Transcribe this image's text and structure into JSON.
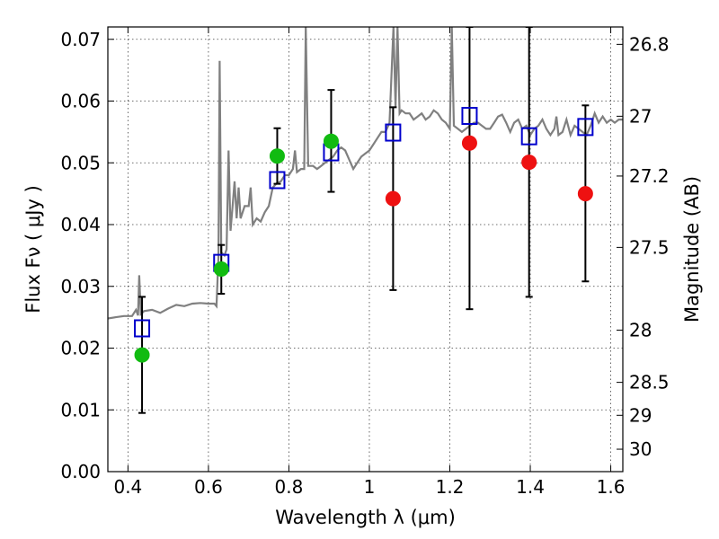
{
  "chart_data": {
    "type": "scatter",
    "xlabel": "Wavelength  λ (μm)",
    "ylabel": "Flux  Fν  ( μJy )",
    "ylabel_right": "Magnitude (AB)",
    "xlim": [
      0.35,
      1.63
    ],
    "ylim": [
      0.0,
      0.072
    ],
    "grid": true,
    "x_ticks": [
      {
        "v": 0.4,
        "label": "0.4"
      },
      {
        "v": 0.6,
        "label": "0.6"
      },
      {
        "v": 0.8,
        "label": "0.8"
      },
      {
        "v": 1.0,
        "label": "1"
      },
      {
        "v": 1.2,
        "label": "1.2"
      },
      {
        "v": 1.4,
        "label": "1.4"
      },
      {
        "v": 1.6,
        "label": "1.6"
      }
    ],
    "y_ticks": [
      {
        "v": 0.0,
        "label": "0.00"
      },
      {
        "v": 0.01,
        "label": "0.01"
      },
      {
        "v": 0.02,
        "label": "0.02"
      },
      {
        "v": 0.03,
        "label": "0.03"
      },
      {
        "v": 0.04,
        "label": "0.04"
      },
      {
        "v": 0.05,
        "label": "0.05"
      },
      {
        "v": 0.06,
        "label": "0.06"
      },
      {
        "v": 0.07,
        "label": "0.07"
      }
    ],
    "right_ticks": [
      {
        "label": "26.8",
        "mag": 26.8
      },
      {
        "label": "27",
        "mag": 27.0
      },
      {
        "label": "27.2",
        "mag": 27.2
      },
      {
        "label": "27.5",
        "mag": 27.5
      },
      {
        "label": "28",
        "mag": 28.0
      },
      {
        "label": "28.5",
        "mag": 28.5
      },
      {
        "label": "29",
        "mag": 29.0
      },
      {
        "label": "30",
        "mag": 30.0
      }
    ],
    "colors": {
      "spectrum": "#808080",
      "model": "#0000cc",
      "detected": "#11bb11",
      "undetected": "#ee1111",
      "errorbar": "#000000"
    },
    "spectrum": [
      [
        0.35,
        0.0248
      ],
      [
        0.37,
        0.025
      ],
      [
        0.39,
        0.0252
      ],
      [
        0.41,
        0.0252
      ],
      [
        0.42,
        0.0262
      ],
      [
        0.425,
        0.0253
      ],
      [
        0.428,
        0.0318
      ],
      [
        0.432,
        0.0255
      ],
      [
        0.44,
        0.026
      ],
      [
        0.46,
        0.0262
      ],
      [
        0.48,
        0.0257
      ],
      [
        0.5,
        0.0264
      ],
      [
        0.52,
        0.027
      ],
      [
        0.54,
        0.0268
      ],
      [
        0.56,
        0.0272
      ],
      [
        0.58,
        0.0273
      ],
      [
        0.6,
        0.0272
      ],
      [
        0.615,
        0.0272
      ],
      [
        0.62,
        0.0268
      ],
      [
        0.625,
        0.035
      ],
      [
        0.628,
        0.0665
      ],
      [
        0.632,
        0.0355
      ],
      [
        0.64,
        0.035
      ],
      [
        0.645,
        0.036
      ],
      [
        0.65,
        0.052
      ],
      [
        0.655,
        0.039
      ],
      [
        0.66,
        0.043
      ],
      [
        0.665,
        0.047
      ],
      [
        0.67,
        0.041
      ],
      [
        0.675,
        0.046
      ],
      [
        0.68,
        0.041
      ],
      [
        0.69,
        0.043
      ],
      [
        0.7,
        0.043
      ],
      [
        0.705,
        0.046
      ],
      [
        0.71,
        0.04
      ],
      [
        0.72,
        0.041
      ],
      [
        0.73,
        0.0405
      ],
      [
        0.74,
        0.042
      ],
      [
        0.75,
        0.043
      ],
      [
        0.76,
        0.046
      ],
      [
        0.77,
        0.0467
      ],
      [
        0.78,
        0.047
      ],
      [
        0.785,
        0.0475
      ],
      [
        0.79,
        0.048
      ],
      [
        0.8,
        0.048
      ],
      [
        0.81,
        0.049
      ],
      [
        0.815,
        0.052
      ],
      [
        0.82,
        0.0485
      ],
      [
        0.83,
        0.049
      ],
      [
        0.838,
        0.049
      ],
      [
        0.842,
        0.072
      ],
      [
        0.848,
        0.0495
      ],
      [
        0.86,
        0.0495
      ],
      [
        0.87,
        0.049
      ],
      [
        0.88,
        0.0495
      ],
      [
        0.89,
        0.05
      ],
      [
        0.9,
        0.0505
      ],
      [
        0.91,
        0.051
      ],
      [
        0.92,
        0.052
      ],
      [
        0.93,
        0.0525
      ],
      [
        0.94,
        0.052
      ],
      [
        0.95,
        0.0505
      ],
      [
        0.96,
        0.049
      ],
      [
        0.97,
        0.05
      ],
      [
        0.98,
        0.051
      ],
      [
        0.99,
        0.0515
      ],
      [
        1.0,
        0.052
      ],
      [
        1.01,
        0.053
      ],
      [
        1.02,
        0.054
      ],
      [
        1.03,
        0.055
      ],
      [
        1.04,
        0.055
      ],
      [
        1.05,
        0.0565
      ],
      [
        1.06,
        0.072
      ],
      [
        1.065,
        0.059
      ],
      [
        1.07,
        0.072
      ],
      [
        1.075,
        0.058
      ],
      [
        1.08,
        0.0585
      ],
      [
        1.09,
        0.058
      ],
      [
        1.1,
        0.058
      ],
      [
        1.11,
        0.057
      ],
      [
        1.12,
        0.0575
      ],
      [
        1.13,
        0.058
      ],
      [
        1.14,
        0.057
      ],
      [
        1.15,
        0.0575
      ],
      [
        1.16,
        0.0585
      ],
      [
        1.17,
        0.058
      ],
      [
        1.18,
        0.057
      ],
      [
        1.19,
        0.0565
      ],
      [
        1.2,
        0.0555
      ],
      [
        1.205,
        0.072
      ],
      [
        1.21,
        0.056
      ],
      [
        1.22,
        0.0555
      ],
      [
        1.23,
        0.055
      ],
      [
        1.24,
        0.0555
      ],
      [
        1.25,
        0.056
      ],
      [
        1.26,
        0.0565
      ],
      [
        1.27,
        0.0565
      ],
      [
        1.28,
        0.056
      ],
      [
        1.29,
        0.0555
      ],
      [
        1.3,
        0.0555
      ],
      [
        1.31,
        0.0565
      ],
      [
        1.32,
        0.0575
      ],
      [
        1.33,
        0.0578
      ],
      [
        1.34,
        0.0565
      ],
      [
        1.35,
        0.055
      ],
      [
        1.36,
        0.0565
      ],
      [
        1.37,
        0.057
      ],
      [
        1.38,
        0.0555
      ],
      [
        1.39,
        0.056
      ],
      [
        1.4,
        0.0545
      ],
      [
        1.41,
        0.0555
      ],
      [
        1.42,
        0.056
      ],
      [
        1.43,
        0.057
      ],
      [
        1.44,
        0.0555
      ],
      [
        1.45,
        0.0545
      ],
      [
        1.46,
        0.0555
      ],
      [
        1.465,
        0.0575
      ],
      [
        1.47,
        0.0545
      ],
      [
        1.48,
        0.055
      ],
      [
        1.49,
        0.057
      ],
      [
        1.5,
        0.0545
      ],
      [
        1.51,
        0.056
      ],
      [
        1.52,
        0.0555
      ],
      [
        1.53,
        0.055
      ],
      [
        1.54,
        0.0545
      ],
      [
        1.55,
        0.056
      ],
      [
        1.56,
        0.058
      ],
      [
        1.57,
        0.0565
      ],
      [
        1.58,
        0.0575
      ],
      [
        1.59,
        0.0565
      ],
      [
        1.6,
        0.057
      ],
      [
        1.61,
        0.0565
      ],
      [
        1.62,
        0.057
      ],
      [
        1.63,
        0.057
      ]
    ],
    "model_points": [
      {
        "x": 0.435,
        "y": 0.0232
      },
      {
        "x": 0.632,
        "y": 0.0338
      },
      {
        "x": 0.771,
        "y": 0.0472
      },
      {
        "x": 0.905,
        "y": 0.0517
      },
      {
        "x": 1.059,
        "y": 0.0549
      },
      {
        "x": 1.249,
        "y": 0.0576
      },
      {
        "x": 1.397,
        "y": 0.0543
      },
      {
        "x": 1.537,
        "y": 0.0558
      }
    ],
    "measurements": [
      {
        "x": 0.435,
        "y": 0.0189,
        "err_low": 0.0095,
        "err_high": 0.0283,
        "color": "detected"
      },
      {
        "x": 0.632,
        "y": 0.0328,
        "err_low": 0.0288,
        "err_high": 0.0367,
        "color": "detected"
      },
      {
        "x": 0.771,
        "y": 0.0511,
        "err_low": 0.0466,
        "err_high": 0.0556,
        "color": "detected"
      },
      {
        "x": 0.905,
        "y": 0.0535,
        "err_low": 0.0453,
        "err_high": 0.0618,
        "color": "detected"
      },
      {
        "x": 1.059,
        "y": 0.0442,
        "err_low": 0.0294,
        "err_high": 0.059,
        "color": "undetected"
      },
      {
        "x": 1.249,
        "y": 0.0532,
        "err_low": 0.0263,
        "err_high": 0.072,
        "color": "undetected"
      },
      {
        "x": 1.397,
        "y": 0.0501,
        "err_low": 0.0283,
        "err_high": 0.072,
        "color": "undetected"
      },
      {
        "x": 1.537,
        "y": 0.045,
        "err_low": 0.0308,
        "err_high": 0.0593,
        "color": "undetected"
      }
    ]
  }
}
